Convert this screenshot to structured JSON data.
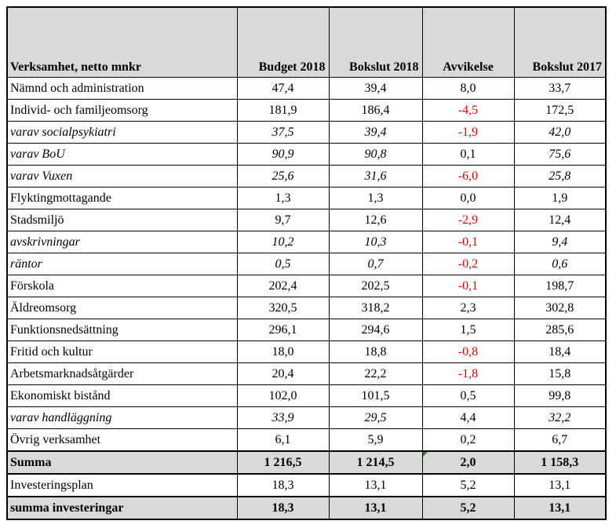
{
  "table": {
    "headers": [
      "Verksamhet, netto mnkr",
      "Budget 2018",
      "Bokslut 2018",
      "Avvikelse",
      "Bokslut 2017"
    ],
    "rows": [
      {
        "label": "Nämnd och administration",
        "budget": "47,4",
        "bokslut": "39,4",
        "avvikelse": "8,0",
        "bokslut2017": "33,7",
        "italic": false,
        "negative": false
      },
      {
        "label": "Individ- och familjeomsorg",
        "budget": "181,9",
        "bokslut": "186,4",
        "avvikelse": "-4,5",
        "bokslut2017": "172,5",
        "italic": false,
        "negative": true
      },
      {
        "label": "varav socialpsykiatri",
        "budget": "37,5",
        "bokslut": "39,4",
        "avvikelse": "-1,9",
        "bokslut2017": "42,0",
        "italic": true,
        "negative": true
      },
      {
        "label": "varav BoU",
        "budget": "90,9",
        "bokslut": "90,8",
        "avvikelse": "0,1",
        "bokslut2017": "75,6",
        "italic": true,
        "negative": false
      },
      {
        "label": "varav Vuxen",
        "budget": "25,6",
        "bokslut": "31,6",
        "avvikelse": "-6,0",
        "bokslut2017": "25,8",
        "italic": true,
        "negative": true
      },
      {
        "label": "Flyktingmottagande",
        "budget": "1,3",
        "bokslut": "1,3",
        "avvikelse": "0,0",
        "bokslut2017": "1,9",
        "italic": false,
        "negative": false
      },
      {
        "label": "Stadsmiljö",
        "budget": "9,7",
        "bokslut": "12,6",
        "avvikelse": "-2,9",
        "bokslut2017": "12,4",
        "italic": false,
        "negative": true
      },
      {
        "label": "avskrivningar",
        "budget": "10,2",
        "bokslut": "10,3",
        "avvikelse": "-0,1",
        "bokslut2017": "9,4",
        "italic": true,
        "negative": true
      },
      {
        "label": "räntor",
        "budget": "0,5",
        "bokslut": "0,7",
        "avvikelse": "-0,2",
        "bokslut2017": "0,6",
        "italic": true,
        "negative": true
      },
      {
        "label": "Förskola",
        "budget": "202,4",
        "bokslut": "202,5",
        "avvikelse": "-0,1",
        "bokslut2017": "198,7",
        "italic": false,
        "negative": true
      },
      {
        "label": "Äldreomsorg",
        "budget": "320,5",
        "bokslut": "318,2",
        "avvikelse": "2,3",
        "bokslut2017": "302,8",
        "italic": false,
        "negative": false
      },
      {
        "label": "Funktionsnedsättning",
        "budget": "296,1",
        "bokslut": "294,6",
        "avvikelse": "1,5",
        "bokslut2017": "285,6",
        "italic": false,
        "negative": false
      },
      {
        "label": "Fritid och kultur",
        "budget": "18,0",
        "bokslut": "18,8",
        "avvikelse": "-0,8",
        "bokslut2017": "18,4",
        "italic": false,
        "negative": true
      },
      {
        "label": "Arbetsmarknadsåtgärder",
        "budget": "20,4",
        "bokslut": "22,2",
        "avvikelse": "-1,8",
        "bokslut2017": "15,8",
        "italic": false,
        "negative": true
      },
      {
        "label": "Ekonomiskt bistånd",
        "budget": "102,0",
        "bokslut": "101,5",
        "avvikelse": "0,5",
        "bokslut2017": "99,8",
        "italic": false,
        "negative": false
      },
      {
        "label": "varav handläggning",
        "budget": "33,9",
        "bokslut": "29,5",
        "avvikelse": "4,4",
        "bokslut2017": "32,2",
        "italic": true,
        "negative": false
      },
      {
        "label": "Övrig verksamhet",
        "budget": "6,1",
        "bokslut": "5,9",
        "avvikelse": "0,2",
        "bokslut2017": "6,7",
        "italic": false,
        "negative": false
      }
    ],
    "summa": {
      "label": "Summa",
      "budget": "1 216,5",
      "bokslut": "1 214,5",
      "avvikelse": "2,0",
      "bokslut2017": "1 158,3"
    },
    "investeringsplan": {
      "label": "Investeringsplan",
      "budget": "18,3",
      "bokslut": "13,1",
      "avvikelse": "5,2",
      "bokslut2017": "13,1"
    },
    "summa_investeringar": {
      "label": "summa investeringar",
      "budget": "18,3",
      "bokslut": "13,1",
      "avvikelse": "5,2",
      "bokslut2017": "13,1"
    },
    "colors": {
      "header_bg": "#d9d9d9",
      "negative": "#e00000",
      "marker": "#1a8a1a"
    }
  }
}
